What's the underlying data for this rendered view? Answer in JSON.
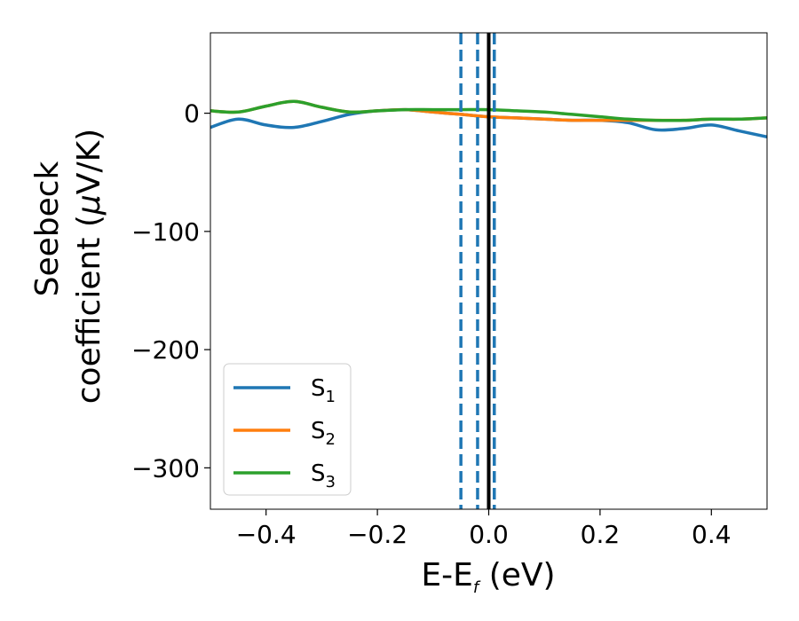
{
  "chart_data": {
    "type": "line",
    "title": "",
    "xlabel": {
      "main": "E-E",
      "sub": "f",
      "unit": " (eV)"
    },
    "ylabel": {
      "line1": "Seebeck",
      "line2_pre": "coefficient  (",
      "mu": "μ",
      "line2_post": "V/K)"
    },
    "xlim": [
      -0.5,
      0.5
    ],
    "ylim": [
      -335,
      68
    ],
    "xticks": [
      {
        "value": -0.4,
        "label": "−0.4"
      },
      {
        "value": -0.2,
        "label": "−0.2"
      },
      {
        "value": 0.0,
        "label": "0.0"
      },
      {
        "value": 0.2,
        "label": "0.2"
      },
      {
        "value": 0.4,
        "label": "0.4"
      }
    ],
    "yticks": [
      {
        "value": 0,
        "label": "0"
      },
      {
        "value": -100,
        "label": "−100"
      },
      {
        "value": -200,
        "label": "−200"
      },
      {
        "value": -300,
        "label": "−300"
      }
    ],
    "x": [
      -0.5,
      -0.45,
      -0.4,
      -0.35,
      -0.3,
      -0.25,
      -0.2,
      -0.15,
      -0.1,
      -0.05,
      0.0,
      0.05,
      0.1,
      0.15,
      0.2,
      0.25,
      0.3,
      0.35,
      0.4,
      0.45,
      0.5
    ],
    "series": [
      {
        "name": "S",
        "sub": "1",
        "color": "#1f77b4",
        "values": [
          -12,
          -5,
          -10,
          -12,
          -7,
          -1,
          2,
          3,
          1,
          -1,
          -3,
          -4,
          -5,
          -6,
          -6,
          -8,
          -14,
          -13,
          -10,
          -15,
          -20
        ]
      },
      {
        "name": "S",
        "sub": "2",
        "color": "#ff7f0e",
        "values": [
          2,
          1,
          6,
          10,
          5,
          1,
          2,
          3,
          1,
          -1,
          -3,
          -4,
          -5,
          -6,
          -6,
          -6,
          -6,
          -6,
          -5,
          -5,
          -4
        ]
      },
      {
        "name": "S",
        "sub": "3",
        "color": "#2ca02c",
        "values": [
          2,
          1,
          6,
          10,
          5,
          1,
          2,
          3,
          3,
          3,
          3,
          2,
          1,
          -1,
          -3,
          -5,
          -6,
          -6,
          -5,
          -5,
          -4
        ]
      }
    ],
    "vlines": [
      {
        "x": -0.05,
        "style": "dashed",
        "color": "#1f77b4"
      },
      {
        "x": -0.02,
        "style": "dashed",
        "color": "#1f77b4"
      },
      {
        "x": 0.01,
        "style": "dashed",
        "color": "#1f77b4"
      },
      {
        "x": 0.0,
        "style": "solid",
        "color": "#000000"
      }
    ],
    "legend_placement": "lower-left",
    "grid": false
  }
}
